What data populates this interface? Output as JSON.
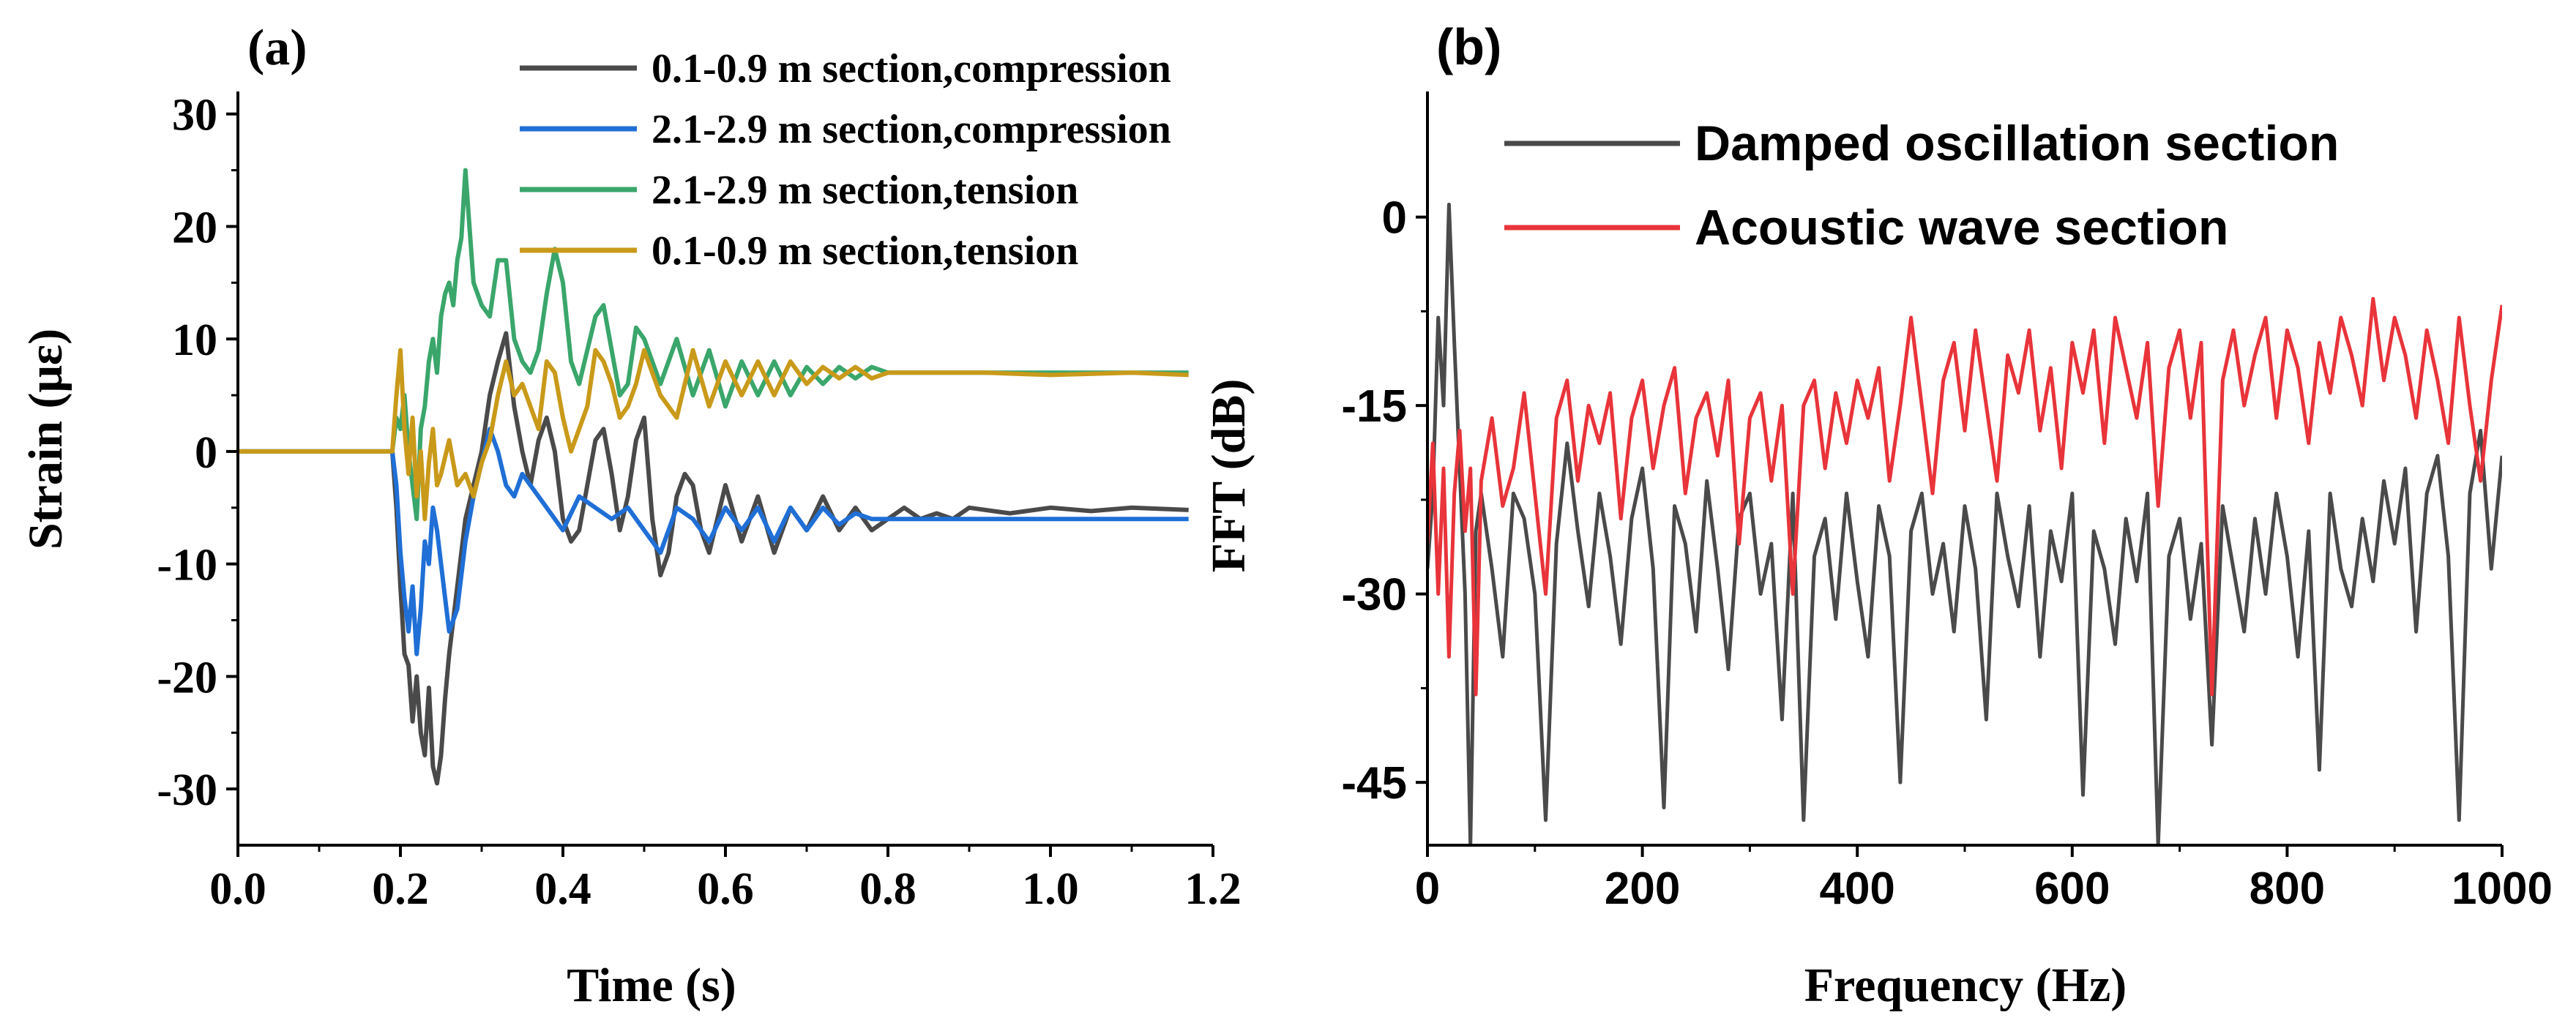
{
  "chart_data": [
    {
      "panel_label": "(a)",
      "type": "line",
      "xlabel": "Time (s)",
      "ylabel": "Strain (με)",
      "xlim": [
        0.0,
        1.2
      ],
      "ylim": [
        -35,
        32
      ],
      "xticks": [
        "0.0",
        "0.2",
        "0.4",
        "0.6",
        "0.8",
        "1.0",
        "1.2"
      ],
      "yticks": [
        "30",
        "20",
        "10",
        "0",
        "-10",
        "-20",
        "-30"
      ],
      "legend_position": "top-right",
      "series": [
        {
          "name": "0.1-0.9 m section,compression",
          "color": "#4a4a4a",
          "x": [
            0,
            0.19,
            0.195,
            0.2,
            0.205,
            0.21,
            0.215,
            0.22,
            0.225,
            0.23,
            0.235,
            0.24,
            0.245,
            0.25,
            0.255,
            0.26,
            0.27,
            0.28,
            0.29,
            0.3,
            0.31,
            0.32,
            0.33,
            0.34,
            0.35,
            0.36,
            0.37,
            0.38,
            0.39,
            0.4,
            0.41,
            0.42,
            0.43,
            0.44,
            0.45,
            0.46,
            0.47,
            0.48,
            0.49,
            0.5,
            0.51,
            0.52,
            0.53,
            0.54,
            0.55,
            0.56,
            0.57,
            0.58,
            0.59,
            0.6,
            0.62,
            0.64,
            0.66,
            0.68,
            0.7,
            0.72,
            0.74,
            0.76,
            0.78,
            0.8,
            0.82,
            0.84,
            0.86,
            0.88,
            0.9,
            0.95,
            1.0,
            1.05,
            1.1,
            1.17
          ],
          "y": [
            0,
            0,
            -5,
            -12,
            -18,
            -19,
            -24,
            -20,
            -25,
            -27,
            -21,
            -28,
            -29.5,
            -27,
            -22,
            -18,
            -12,
            -6,
            -3,
            0,
            5,
            8,
            10.5,
            4,
            0,
            -3,
            1,
            3,
            0,
            -6,
            -8,
            -7,
            -3,
            1,
            2,
            -2,
            -7,
            -4,
            1,
            3,
            -6,
            -11,
            -9,
            -4,
            -2,
            -3,
            -7,
            -9,
            -6,
            -3,
            -8,
            -4,
            -9,
            -5,
            -7,
            -4,
            -7,
            -5,
            -7,
            -6,
            -5,
            -6,
            -5.5,
            -6,
            -5,
            -5.5,
            -5,
            -5.3,
            -5,
            -5.2
          ]
        },
        {
          "name": "2.1-2.9 m section,compression",
          "color": "#1f6fd6",
          "x": [
            0,
            0.19,
            0.195,
            0.2,
            0.205,
            0.21,
            0.215,
            0.22,
            0.225,
            0.23,
            0.235,
            0.24,
            0.245,
            0.25,
            0.255,
            0.26,
            0.27,
            0.28,
            0.29,
            0.3,
            0.31,
            0.32,
            0.33,
            0.34,
            0.35,
            0.36,
            0.38,
            0.4,
            0.42,
            0.44,
            0.46,
            0.48,
            0.5,
            0.52,
            0.54,
            0.56,
            0.58,
            0.6,
            0.62,
            0.64,
            0.66,
            0.68,
            0.7,
            0.72,
            0.74,
            0.76,
            0.78,
            0.8,
            0.84,
            0.88,
            0.92,
            1.0,
            1.1,
            1.17
          ],
          "y": [
            0,
            0,
            -3,
            -9,
            -13,
            -16,
            -12,
            -18,
            -14,
            -8,
            -10,
            -5,
            -7,
            -10,
            -13,
            -16,
            -14,
            -8,
            -4,
            -1,
            2,
            0,
            -3,
            -4,
            -2,
            -3,
            -5,
            -7,
            -4,
            -5,
            -6,
            -5,
            -7,
            -9,
            -5,
            -6,
            -8,
            -5,
            -7,
            -5,
            -8,
            -5,
            -7,
            -5,
            -6.5,
            -5.5,
            -6,
            -6,
            -6,
            -6,
            -6,
            -6,
            -6,
            -6
          ]
        },
        {
          "name": "2.1-2.9 m section,tension",
          "color": "#3aa66b",
          "x": [
            0,
            0.19,
            0.195,
            0.2,
            0.205,
            0.21,
            0.215,
            0.22,
            0.225,
            0.23,
            0.235,
            0.24,
            0.245,
            0.25,
            0.255,
            0.26,
            0.265,
            0.27,
            0.275,
            0.28,
            0.285,
            0.29,
            0.3,
            0.31,
            0.32,
            0.33,
            0.34,
            0.35,
            0.36,
            0.37,
            0.38,
            0.39,
            0.4,
            0.41,
            0.42,
            0.43,
            0.44,
            0.45,
            0.46,
            0.47,
            0.48,
            0.49,
            0.5,
            0.51,
            0.52,
            0.53,
            0.54,
            0.56,
            0.58,
            0.6,
            0.62,
            0.64,
            0.66,
            0.68,
            0.7,
            0.72,
            0.74,
            0.76,
            0.78,
            0.8,
            0.84,
            0.88,
            0.92,
            1.0,
            1.1,
            1.17
          ],
          "y": [
            0,
            0,
            3,
            2,
            5,
            0,
            -3,
            -6,
            2,
            4,
            8,
            10,
            7,
            12,
            14,
            15,
            13,
            17,
            19,
            25,
            20,
            15,
            13,
            12,
            17,
            17,
            10,
            8,
            7,
            9,
            14,
            18,
            15,
            8,
            6,
            9,
            12,
            13,
            9,
            5,
            6,
            11,
            10,
            8,
            6,
            8,
            10,
            5,
            9,
            4,
            8,
            5,
            8,
            5,
            7.5,
            6,
            7.5,
            6.5,
            7.5,
            7,
            7,
            7,
            7,
            7,
            7,
            7
          ]
        },
        {
          "name": "0.1-0.9 m section,tension",
          "color": "#c99a1a",
          "x": [
            0,
            0.19,
            0.195,
            0.2,
            0.205,
            0.21,
            0.215,
            0.22,
            0.225,
            0.23,
            0.235,
            0.24,
            0.245,
            0.25,
            0.26,
            0.27,
            0.28,
            0.29,
            0.3,
            0.31,
            0.32,
            0.33,
            0.34,
            0.35,
            0.36,
            0.37,
            0.38,
            0.39,
            0.4,
            0.41,
            0.42,
            0.43,
            0.44,
            0.45,
            0.46,
            0.47,
            0.48,
            0.49,
            0.5,
            0.52,
            0.54,
            0.56,
            0.58,
            0.6,
            0.62,
            0.64,
            0.66,
            0.68,
            0.7,
            0.72,
            0.74,
            0.76,
            0.78,
            0.8,
            0.84,
            0.88,
            0.92,
            1.0,
            1.1,
            1.17
          ],
          "y": [
            0,
            0,
            5,
            9,
            2,
            -2,
            3,
            -4,
            0,
            -6,
            -1,
            2,
            -3,
            -2,
            1,
            -3,
            -2,
            -4,
            -1,
            1,
            5,
            8,
            5,
            6,
            4,
            2,
            8,
            7,
            3,
            0,
            2,
            4,
            9,
            8,
            6,
            3,
            4,
            6,
            9,
            5,
            3,
            9,
            4,
            8,
            5,
            8,
            5,
            8,
            6,
            7.5,
            6.5,
            7.5,
            6.5,
            7,
            7,
            7,
            7,
            6.8,
            7,
            6.8
          ]
        }
      ]
    },
    {
      "panel_label": "(b)",
      "type": "line",
      "xlabel": "Frequency (Hz)",
      "ylabel": "FFT (dB)",
      "xlim": [
        0,
        1000
      ],
      "ylim": [
        -50,
        10
      ],
      "xticks": [
        "0",
        "200",
        "400",
        "600",
        "800",
        "1000"
      ],
      "yticks": [
        "0",
        "-15",
        "-30",
        "-45"
      ],
      "legend_position": "top-right",
      "series": [
        {
          "name": "Damped oscillation section",
          "color": "#4a4a4a",
          "x": [
            0,
            5,
            10,
            15,
            20,
            25,
            30,
            35,
            40,
            45,
            50,
            60,
            70,
            80,
            90,
            100,
            110,
            120,
            130,
            140,
            150,
            160,
            170,
            180,
            190,
            200,
            210,
            220,
            230,
            240,
            250,
            260,
            270,
            280,
            290,
            300,
            310,
            320,
            330,
            340,
            350,
            360,
            370,
            380,
            390,
            400,
            410,
            420,
            430,
            440,
            450,
            460,
            470,
            480,
            490,
            500,
            510,
            520,
            530,
            540,
            550,
            560,
            570,
            580,
            590,
            600,
            610,
            620,
            630,
            640,
            650,
            660,
            670,
            680,
            690,
            700,
            710,
            720,
            730,
            740,
            750,
            760,
            770,
            780,
            790,
            800,
            810,
            820,
            830,
            840,
            850,
            860,
            870,
            880,
            890,
            900,
            910,
            920,
            930,
            940,
            950,
            960,
            970,
            980,
            990,
            1000
          ],
          "y": [
            -28,
            -22,
            -8,
            -15,
            1,
            -10,
            -20,
            -30,
            -50,
            -25,
            -22,
            -28,
            -35,
            -22,
            -24,
            -30,
            -48,
            -26,
            -18,
            -25,
            -31,
            -22,
            -27,
            -34,
            -24,
            -20,
            -28,
            -47,
            -23,
            -26,
            -33,
            -21,
            -28,
            -36,
            -24,
            -22,
            -30,
            -26,
            -40,
            -22,
            -48,
            -27,
            -24,
            -32,
            -22,
            -29,
            -35,
            -23,
            -27,
            -45,
            -25,
            -22,
            -30,
            -26,
            -33,
            -23,
            -28,
            -40,
            -22,
            -27,
            -31,
            -23,
            -35,
            -25,
            -29,
            -22,
            -46,
            -25,
            -28,
            -34,
            -24,
            -29,
            -22,
            -50,
            -27,
            -24,
            -32,
            -26,
            -42,
            -23,
            -28,
            -33,
            -24,
            -30,
            -22,
            -27,
            -35,
            -25,
            -44,
            -22,
            -28,
            -31,
            -24,
            -29,
            -21,
            -26,
            -20,
            -33,
            -22,
            -19,
            -27,
            -48,
            -22,
            -17,
            -28,
            -19
          ]
        },
        {
          "name": "Acoustic wave section",
          "color": "#e8343a",
          "x": [
            0,
            5,
            10,
            15,
            20,
            25,
            30,
            35,
            40,
            45,
            50,
            60,
            70,
            80,
            90,
            100,
            110,
            120,
            130,
            140,
            150,
            160,
            170,
            180,
            190,
            200,
            210,
            220,
            230,
            240,
            250,
            260,
            270,
            280,
            290,
            300,
            310,
            320,
            330,
            340,
            350,
            360,
            370,
            380,
            390,
            400,
            410,
            420,
            430,
            440,
            450,
            460,
            470,
            480,
            490,
            500,
            510,
            520,
            530,
            540,
            550,
            560,
            570,
            580,
            590,
            600,
            610,
            620,
            630,
            640,
            650,
            660,
            670,
            680,
            690,
            700,
            710,
            720,
            730,
            740,
            750,
            760,
            770,
            780,
            790,
            800,
            810,
            820,
            830,
            840,
            850,
            860,
            870,
            880,
            890,
            900,
            910,
            920,
            930,
            940,
            950,
            960,
            970,
            980,
            990,
            1000
          ],
          "y": [
            -26,
            -18,
            -30,
            -20,
            -35,
            -22,
            -17,
            -25,
            -20,
            -38,
            -21,
            -16,
            -23,
            -20,
            -14,
            -22,
            -30,
            -16,
            -13,
            -21,
            -15,
            -18,
            -14,
            -24,
            -16,
            -13,
            -20,
            -15,
            -12,
            -22,
            -16,
            -14,
            -19,
            -13,
            -26,
            -16,
            -14,
            -21,
            -15,
            -30,
            -15,
            -13,
            -20,
            -14,
            -18,
            -13,
            -16,
            -12,
            -21,
            -15,
            -8,
            -15,
            -22,
            -13,
            -10,
            -17,
            -9,
            -15,
            -21,
            -11,
            -14,
            -9,
            -17,
            -12,
            -20,
            -10,
            -14,
            -9,
            -18,
            -8,
            -12,
            -16,
            -10,
            -23,
            -12,
            -9,
            -16,
            -10,
            -38,
            -13,
            -9,
            -15,
            -11,
            -8,
            -16,
            -9,
            -12,
            -18,
            -10,
            -14,
            -8,
            -11,
            -15,
            -6.5,
            -13,
            -8,
            -11,
            -16,
            -9,
            -13,
            -18,
            -8,
            -15,
            -21,
            -13,
            -7
          ]
        }
      ]
    }
  ]
}
